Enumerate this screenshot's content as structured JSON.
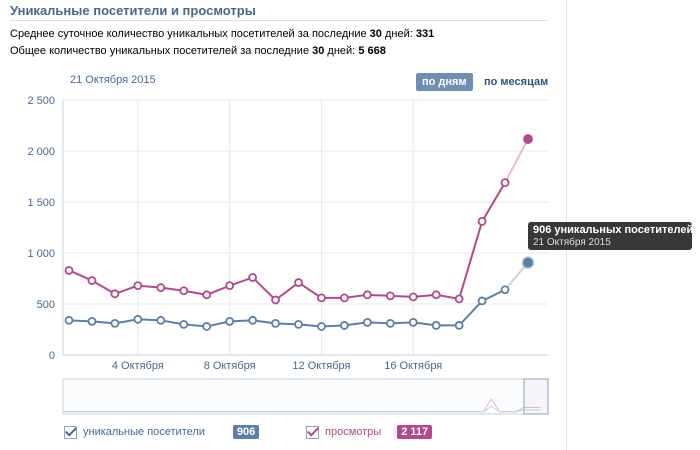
{
  "section": {
    "title": "Уникальные посетители и просмотры"
  },
  "stats": {
    "avg_prefix": "Среднее суточное количество уникальных посетителей за последние ",
    "avg_days": "30",
    "avg_mid": " дней: ",
    "avg_value": "331",
    "total_prefix": "Общее количество уникальных посетителей за последние ",
    "total_days": "30",
    "total_mid": " дней: ",
    "total_value": "5 668"
  },
  "header": {
    "date": "21 Октября 2015",
    "by_day_label": "по дням",
    "by_month_label": "по месяцам"
  },
  "tooltip": {
    "value_line": "906 уникальных посетителей",
    "date_line": "21 Октября 2015"
  },
  "legend": {
    "visitors_label": "уникальные посетители",
    "visitors_value": "906",
    "views_label": "просмотры",
    "views_value": "2 117"
  },
  "colors": {
    "visitors": "#5b7fa6",
    "views": "#b4488e",
    "visitors_badge": "#5b7fa6",
    "views_badge": "#b4488e"
  },
  "chart_data": {
    "type": "line",
    "y_ticks": [
      "2 500",
      "2 000",
      "1 500",
      "1 000",
      "500",
      "0"
    ],
    "y_tick_values": [
      2500,
      2000,
      1500,
      1000,
      500,
      0
    ],
    "x_tick_labels": [
      "4 Октября",
      "8 Октября",
      "12 Октября",
      "16 Октября"
    ],
    "x_tick_days": [
      3,
      7,
      11,
      15
    ],
    "ylim": [
      0,
      2500
    ],
    "x_count": 21,
    "grid": true,
    "series": [
      {
        "name": "просмотры",
        "values": [
          830,
          730,
          600,
          680,
          660,
          630,
          590,
          680,
          760,
          540,
          710,
          560,
          560,
          590,
          580,
          570,
          590,
          550,
          1310,
          1690,
          2117
        ]
      },
      {
        "name": "уникальные посетители",
        "values": [
          340,
          330,
          310,
          350,
          340,
          300,
          280,
          330,
          340,
          310,
          300,
          280,
          290,
          320,
          310,
          320,
          290,
          290,
          530,
          640,
          906
        ]
      }
    ]
  }
}
